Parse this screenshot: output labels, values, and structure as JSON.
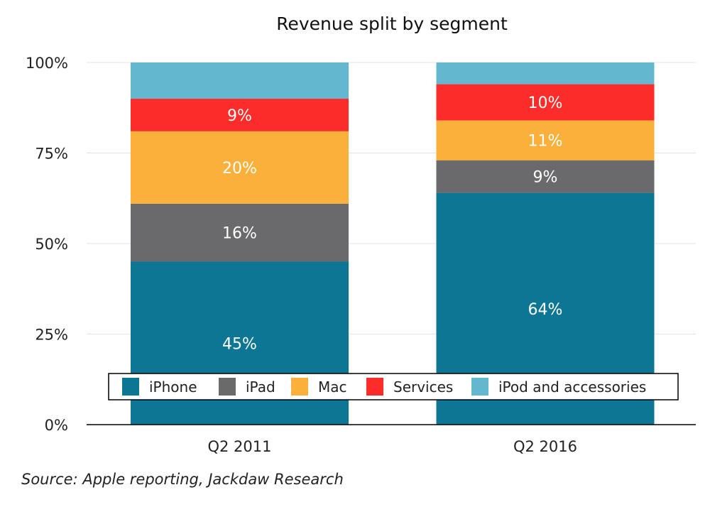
{
  "chart_data": {
    "type": "bar",
    "stacked": true,
    "title": "Revenue split by segment",
    "xlabel": "",
    "ylabel": "",
    "ylim": [
      0,
      100
    ],
    "y_ticks": [
      "0%",
      "25%",
      "50%",
      "75%",
      "100%"
    ],
    "y_tick_values": [
      0,
      25,
      50,
      75,
      100
    ],
    "grid": true,
    "legend_position": "bottom-inside",
    "categories": [
      "Q2 2011",
      "Q2 2016"
    ],
    "series": [
      {
        "name": "iPhone",
        "color": "#0c7694",
        "values": [
          45,
          64
        ],
        "labels": [
          "45%",
          "64%"
        ]
      },
      {
        "name": "iPad",
        "color": "#6a6a6c",
        "values": [
          16,
          9
        ],
        "labels": [
          "16%",
          "9%"
        ]
      },
      {
        "name": "Mac",
        "color": "#fbb03b",
        "values": [
          20,
          11
        ],
        "labels": [
          "20%",
          "11%"
        ]
      },
      {
        "name": "Services",
        "color": "#fb2d2a",
        "values": [
          9,
          10
        ],
        "labels": [
          "9%",
          "10%"
        ]
      },
      {
        "name": "iPod and accessories",
        "color": "#63b8d0",
        "values": [
          10,
          6
        ],
        "labels": [
          "",
          ""
        ]
      }
    ],
    "source": "Source: Apple reporting, Jackdaw Research"
  }
}
